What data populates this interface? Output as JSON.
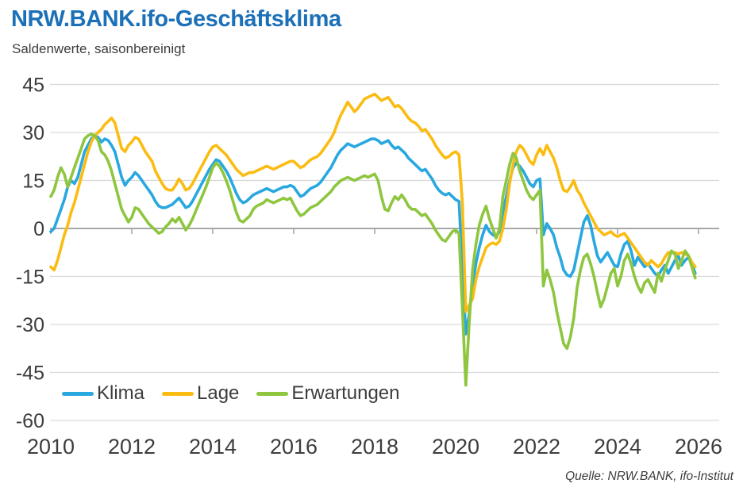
{
  "header": {
    "title": "NRW.BANK.ifo-Geschäftsklima",
    "subtitle": "Saldenwerte, saisonbereinigt",
    "title_color": "#1c70b8"
  },
  "source": {
    "text": "Quelle: NRW.BANK, ifo-Institut"
  },
  "chart_data": {
    "type": "line",
    "title": "NRW.BANK.ifo-Geschäftsklima",
    "subtitle": "Saldenwerte, saisonbereinigt",
    "xlabel": "",
    "ylabel": "",
    "frequency": "monthly",
    "x_start": "2010-01",
    "x_end": "2025-12",
    "ylim": [
      -60,
      45
    ],
    "y_ticks": [
      45,
      30,
      15,
      0,
      -15,
      -30,
      -45,
      -60
    ],
    "x_tick_labels": [
      "2010",
      "2012",
      "2014",
      "2016",
      "2018",
      "2020",
      "2022",
      "2024",
      "2026"
    ],
    "grid": true,
    "zero_axis": true,
    "legend_position": "bottom-left-inside",
    "grid_color": "#d9d9d9",
    "zero_line_color": "#a7a7a7",
    "axis_text_color": "#3d3d3d",
    "series": [
      {
        "name": "Klima",
        "color": "#29a8e0",
        "values": [
          -1,
          0,
          3,
          6,
          9,
          13,
          15,
          14,
          16,
          20,
          24,
          26,
          28,
          29,
          28.5,
          27,
          28,
          27.5,
          26,
          24,
          20,
          16,
          13.5,
          15,
          16,
          17.5,
          16.5,
          15,
          13.5,
          12,
          10.5,
          8.5,
          7,
          6.5,
          6.5,
          7,
          7.5,
          8.5,
          9.5,
          8,
          6.5,
          7,
          8.5,
          10.5,
          12.5,
          14.5,
          16.5,
          18.5,
          20,
          21.5,
          21,
          19.5,
          18,
          16,
          13.5,
          11,
          9,
          8,
          8.5,
          9.5,
          10.5,
          11,
          11.5,
          12,
          12.5,
          12,
          11.5,
          12,
          12.5,
          13,
          13,
          13.5,
          13,
          11.5,
          10,
          10.5,
          11.5,
          12.5,
          13,
          13.5,
          14.5,
          16,
          17.5,
          19,
          21,
          23,
          24.5,
          25.5,
          26.5,
          26,
          25.5,
          26,
          26.5,
          27,
          27.5,
          28,
          28,
          27.5,
          26.5,
          27,
          27.5,
          26,
          25,
          25.5,
          24.5,
          23.5,
          22,
          21,
          20,
          19,
          18,
          18.5,
          17,
          15.5,
          13.5,
          12,
          11,
          10.5,
          11,
          10,
          9,
          8.5,
          -12,
          -33,
          -27,
          -18,
          -11,
          -6,
          -2,
          1,
          -1,
          -2,
          -2.5,
          -1,
          5,
          10,
          15,
          19,
          20.5,
          19.5,
          18,
          16,
          14,
          13,
          15,
          15.5,
          -2,
          1.5,
          0,
          -2,
          -6,
          -9,
          -13,
          -14.5,
          -15,
          -13,
          -8,
          -3,
          2,
          4,
          1,
          -4,
          -8.5,
          -10.5,
          -9,
          -7.5,
          -9.5,
          -11.5,
          -12,
          -8,
          -5,
          -4,
          -7,
          -11.5,
          -9,
          -10.5,
          -12,
          -11,
          -12.5,
          -14,
          -15,
          -13,
          -11.5,
          -14,
          -12,
          -10,
          -8.5,
          -11.5,
          -10,
          -9,
          -11,
          -14
        ]
      },
      {
        "name": "Lage",
        "color": "#fbbc12",
        "values": [
          -12,
          -13,
          -10,
          -6,
          -2,
          1,
          5,
          8,
          12,
          16,
          20,
          24,
          27,
          29,
          30,
          31,
          32.5,
          33.5,
          34.5,
          33,
          29,
          25,
          24,
          26,
          27,
          28.5,
          28,
          26,
          24,
          22.5,
          21,
          18,
          16,
          14,
          12.5,
          12,
          12,
          13.5,
          15.5,
          14,
          12,
          12.5,
          14,
          16,
          18,
          20,
          22,
          24,
          25.5,
          26,
          25,
          24,
          23,
          21.5,
          20,
          18.5,
          17.5,
          16.5,
          17,
          17.5,
          17.5,
          18,
          18.5,
          19,
          19.5,
          19,
          18.5,
          19,
          19.5,
          20,
          20.5,
          21,
          21,
          20,
          19,
          19.5,
          20.5,
          21.5,
          22,
          22.5,
          23.5,
          25,
          26.5,
          28,
          30,
          33,
          35.5,
          37.5,
          39.5,
          38,
          36.5,
          37.5,
          39,
          40.5,
          41,
          41.5,
          42,
          41,
          40,
          40.5,
          41,
          39.5,
          38,
          38.5,
          37.5,
          36,
          34.5,
          33.5,
          33,
          32,
          30.5,
          31,
          29.5,
          28,
          26,
          24.5,
          23,
          22,
          22.5,
          23.5,
          24,
          23,
          8,
          -26,
          -24,
          -22,
          -16,
          -12,
          -9,
          -6,
          -5,
          -4.5,
          -5,
          -4,
          0,
          6,
          14,
          20,
          24,
          26,
          25,
          23,
          21,
          20,
          23,
          25,
          23,
          26,
          24,
          22,
          19,
          15,
          12,
          11.5,
          13,
          15,
          12,
          10.5,
          8,
          6,
          4,
          2,
          0,
          -1,
          -2,
          -1.5,
          -1,
          -2,
          -2.5,
          -2,
          -1.5,
          -3,
          -4.5,
          -6,
          -7.5,
          -9,
          -10.5,
          -11.5,
          -10,
          -11,
          -12,
          -11,
          -9,
          -7.5,
          -7.5,
          -7.5,
          -8,
          -7.5,
          -8,
          -8.5,
          -10.5,
          -12
        ]
      },
      {
        "name": "Erwartungen",
        "color": "#8ec63f",
        "values": [
          10,
          12,
          16,
          19,
          17,
          13,
          16,
          19,
          22,
          25,
          28,
          29,
          29.5,
          29,
          27.5,
          24,
          23,
          21,
          18,
          14,
          10,
          6,
          4,
          2,
          3.5,
          6.5,
          6,
          4.5,
          3,
          1.5,
          0.5,
          -0.5,
          -1.5,
          -1,
          0.5,
          1.5,
          3,
          2,
          3.5,
          1.5,
          -0.5,
          1,
          3,
          5.5,
          8,
          10.5,
          13,
          16,
          19,
          20.5,
          19.5,
          17.5,
          15,
          12,
          8.5,
          5,
          2.5,
          2,
          3,
          4,
          6,
          7,
          7.5,
          8,
          9,
          8.5,
          8,
          8.5,
          9,
          9.5,
          9,
          9.5,
          7.5,
          5.5,
          4,
          4.5,
          5.5,
          6.5,
          7,
          7.5,
          8.5,
          9.5,
          10.5,
          11.5,
          13,
          14,
          15,
          15.5,
          16,
          15.5,
          15,
          15.5,
          16,
          16.5,
          16,
          16.5,
          17,
          15,
          10,
          6,
          5.5,
          8,
          10,
          9,
          10.5,
          9,
          7,
          6,
          6,
          5,
          4,
          4.5,
          3,
          1.5,
          -0.5,
          -2,
          -3.5,
          -4,
          -2.5,
          -1,
          -0.5,
          -1.5,
          -25,
          -49,
          -30,
          -13,
          -5,
          1,
          4.5,
          7,
          3,
          0,
          -3,
          0,
          10,
          15,
          20,
          23.5,
          22,
          18,
          15,
          12,
          10,
          9,
          10.5,
          12,
          -18,
          -13,
          -16,
          -20,
          -26,
          -31,
          -36,
          -37.5,
          -34,
          -28,
          -18.5,
          -13,
          -9,
          -8,
          -11,
          -15,
          -20,
          -24.5,
          -22,
          -18,
          -14,
          -12.5,
          -18,
          -15,
          -10,
          -8,
          -11,
          -15,
          -18,
          -20,
          -17,
          -16,
          -18,
          -20,
          -14,
          -16.5,
          -13,
          -10,
          -7,
          -8,
          -12.5,
          -10,
          -7,
          -8.5,
          -12,
          -15.5
        ]
      }
    ]
  }
}
